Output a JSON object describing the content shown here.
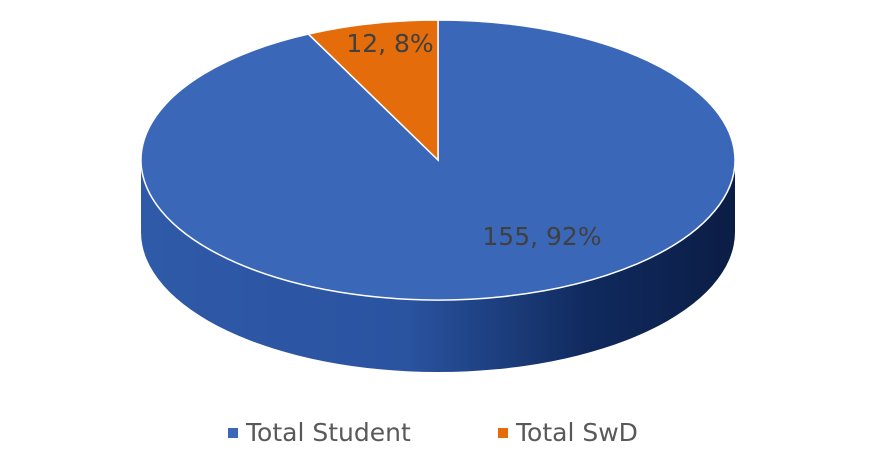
{
  "chart_data": {
    "type": "pie",
    "categories": [
      "Total Student",
      "Total SwD"
    ],
    "values": [
      155,
      12
    ],
    "value_labels": [
      "155, 92%",
      "12, 8%"
    ],
    "colors": [
      "#3a67b7",
      "#e46c0a"
    ],
    "legend": "bottom"
  }
}
